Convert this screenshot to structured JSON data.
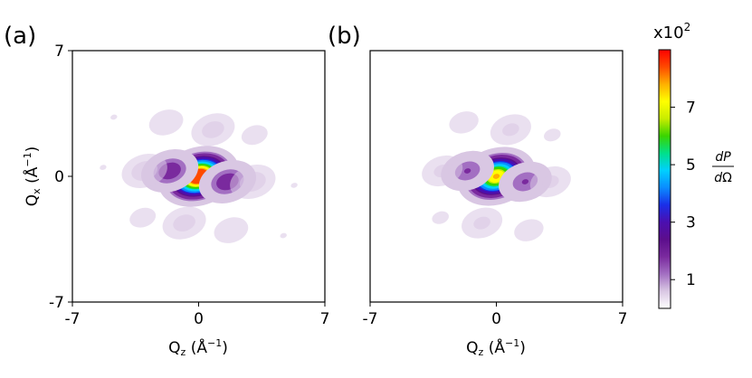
{
  "chart_data": [
    {
      "type": "heatmap",
      "panel_label": "(a)",
      "xlabel": "Q_z (Å^-1)",
      "ylabel": "Q_x (Å^-1)",
      "xlim": [
        -7,
        7
      ],
      "ylim": [
        -7,
        7
      ],
      "xticks": [
        "-7",
        "0",
        "7"
      ],
      "yticks": [
        "-7",
        "0",
        "7"
      ],
      "peaks": [
        {
          "x": 0,
          "y": 0,
          "v": 10.0
        },
        {
          "x": -1.6,
          "y": 0.3,
          "v": 2.0
        },
        {
          "x": 1.6,
          "y": -0.3,
          "v": 2.0
        },
        {
          "x": -3.0,
          "y": 0.3,
          "v": 1.1
        },
        {
          "x": 3.0,
          "y": -0.3,
          "v": 1.1
        },
        {
          "x": 0.8,
          "y": 2.6,
          "v": 1.0
        },
        {
          "x": -0.8,
          "y": -2.6,
          "v": 1.0
        },
        {
          "x": -1.8,
          "y": 3.0,
          "v": 0.7
        },
        {
          "x": 1.8,
          "y": -3.0,
          "v": 0.7
        },
        {
          "x": 3.1,
          "y": 2.3,
          "v": 0.55
        },
        {
          "x": -3.1,
          "y": -2.3,
          "v": 0.55
        },
        {
          "x": -4.7,
          "y": 3.3,
          "v": 0.4
        },
        {
          "x": 4.7,
          "y": -3.3,
          "v": 0.4
        },
        {
          "x": -5.3,
          "y": 0.5,
          "v": 0.4
        },
        {
          "x": 5.3,
          "y": -0.5,
          "v": 0.4
        },
        {
          "x": 2.3,
          "y": 5.3,
          "v": 0.3
        },
        {
          "x": -2.3,
          "y": -5.3,
          "v": 0.3
        },
        {
          "x": -2.3,
          "y": 5.6,
          "v": 0.25
        },
        {
          "x": 2.3,
          "y": -5.6,
          "v": 0.25
        },
        {
          "x": 5.0,
          "y": 5.3,
          "v": 0.25
        },
        {
          "x": -5.0,
          "y": -5.3,
          "v": 0.25
        },
        {
          "x": -5.8,
          "y": 5.3,
          "v": 0.2
        },
        {
          "x": 5.8,
          "y": -5.3,
          "v": 0.2
        },
        {
          "x": 6.0,
          "y": 2.5,
          "v": 0.2
        },
        {
          "x": -6.0,
          "y": -2.5,
          "v": 0.2
        }
      ]
    },
    {
      "type": "heatmap",
      "panel_label": "(b)",
      "xlabel": "Q_z (Å^-1)",
      "ylabel": "",
      "xlim": [
        -7,
        7
      ],
      "ylim": [
        -7,
        7
      ],
      "xticks": [
        "-7",
        "0",
        "7"
      ],
      "yticks": [],
      "peaks": [
        {
          "x": 0,
          "y": 0,
          "v": 8.0
        },
        {
          "x": -1.6,
          "y": 0.3,
          "v": 1.6
        },
        {
          "x": 1.6,
          "y": -0.3,
          "v": 1.6
        },
        {
          "x": -3.0,
          "y": 0.3,
          "v": 0.9
        },
        {
          "x": 3.0,
          "y": -0.3,
          "v": 0.9
        },
        {
          "x": 0.8,
          "y": 2.6,
          "v": 0.9
        },
        {
          "x": -0.8,
          "y": -2.6,
          "v": 0.9
        },
        {
          "x": -1.8,
          "y": 3.0,
          "v": 0.6
        },
        {
          "x": 1.8,
          "y": -3.0,
          "v": 0.6
        },
        {
          "x": 3.1,
          "y": 2.3,
          "v": 0.45
        },
        {
          "x": -3.1,
          "y": -2.3,
          "v": 0.45
        },
        {
          "x": -4.7,
          "y": 3.3,
          "v": 0.35
        },
        {
          "x": 4.7,
          "y": -3.3,
          "v": 0.35
        },
        {
          "x": -5.3,
          "y": 0.5,
          "v": 0.35
        },
        {
          "x": 5.3,
          "y": -0.5,
          "v": 0.35
        },
        {
          "x": 2.3,
          "y": 5.3,
          "v": 0.25
        },
        {
          "x": -2.3,
          "y": -5.3,
          "v": 0.25
        },
        {
          "x": -2.3,
          "y": 5.6,
          "v": 0.2
        },
        {
          "x": 2.3,
          "y": -5.6,
          "v": 0.2
        },
        {
          "x": 5.0,
          "y": 5.3,
          "v": 0.2
        },
        {
          "x": -5.0,
          "y": -5.3,
          "v": 0.2
        },
        {
          "x": -5.8,
          "y": 5.3,
          "v": 0.18
        },
        {
          "x": 5.8,
          "y": -5.3,
          "v": 0.18
        },
        {
          "x": 6.0,
          "y": 2.5,
          "v": 0.18
        },
        {
          "x": -6.0,
          "y": -2.5,
          "v": 0.18
        }
      ]
    }
  ],
  "colorbar": {
    "multiplier": "x10",
    "multiplier_exp": "2",
    "ticks": [
      1,
      3,
      5,
      7
    ],
    "range": [
      0,
      9
    ],
    "label_num": "dP",
    "label_den": "dΩ",
    "colors": [
      "#ffffff",
      "#d9c7e3",
      "#a36fc2",
      "#7a2a9e",
      "#5c0e8c",
      "#4b0fb0",
      "#1a2fe8",
      "#0a8cff",
      "#00d0ff",
      "#00e08a",
      "#3ad400",
      "#c8ec00",
      "#ffff00",
      "#ffb000",
      "#ff4a00",
      "#ff0000"
    ]
  }
}
